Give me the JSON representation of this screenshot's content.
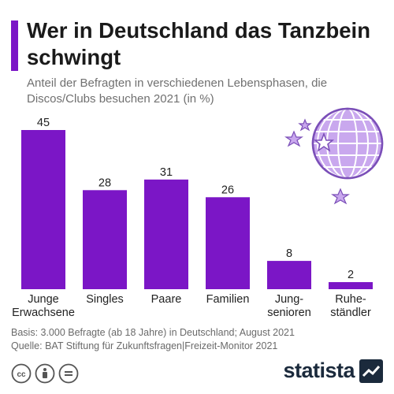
{
  "title": "Wer in Deutschland das Tanzbein schwingt",
  "subtitle": "Anteil der Befragten in verschiedenen Lebensphasen, die Discos/Clubs besuchen 2021 (in %)",
  "colors": {
    "bar": "#7b16c6",
    "accent": "#7b16c6",
    "illustration": "#b48ee0",
    "text": "#222222"
  },
  "chart_data": {
    "type": "bar",
    "title": "Wer in Deutschland das Tanzbein schwingt",
    "subtitle": "Anteil der Befragten in verschiedenen Lebensphasen, die Discos/Clubs besuchen 2021 (in %)",
    "categories": [
      [
        "Junge",
        "Erwachsene"
      ],
      [
        "Singles"
      ],
      [
        "Paare"
      ],
      [
        "Familien"
      ],
      [
        "Jung-",
        "senioren"
      ],
      [
        "Ruhe-",
        "ständler"
      ]
    ],
    "values": [
      45,
      28,
      31,
      26,
      8,
      2
    ],
    "ylim": [
      0,
      45
    ],
    "grid": false,
    "legend": "none",
    "data_labels": true
  },
  "footer": {
    "basis": "Basis: 3.000 Befragte (ab 18 Jahre) in Deutschland; August 2021",
    "source": "Quelle: BAT Stiftung für Zukunftsfragen|Freizeit-Monitor 2021"
  },
  "license_icons": [
    "cc-icon",
    "attribution-icon",
    "no-derivatives-icon"
  ],
  "brand": {
    "name": "statista",
    "logo_icon": "statista-logo-icon"
  },
  "illustration": {
    "icon": "disco-ball-icon",
    "stars": "star-icon"
  }
}
